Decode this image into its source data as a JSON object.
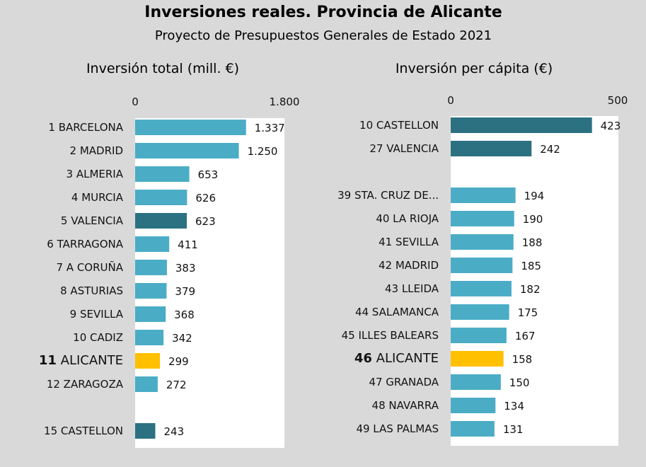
{
  "title": "Inversiones reales. Provincia de Alicante",
  "subtitle": "Proyecto de Presupuestos Generales de Estado 2021",
  "colors": {
    "background": "#d9d9d9",
    "plot_area": "#ffffff",
    "bar_default": "#4bacc6",
    "bar_valencia_region": "#2c7181",
    "bar_highlight": "#ffc000"
  },
  "chart_data": [
    {
      "type": "bar",
      "orientation": "horizontal",
      "title": "Inversión total (mill. €)",
      "xlim": [
        0,
        1800
      ],
      "tick_labels": [
        "0",
        "1.800"
      ],
      "categories": [
        "1 BARCELONA",
        "2 MADRID",
        "3 ALMERIA",
        "4 MURCIA",
        "5 VALENCIA",
        "6 TARRAGONA",
        "7 A CORUÑA",
        "8 ASTURIAS",
        "9 SEVILLA",
        "10 CADIZ",
        "11 ALICANTE",
        "12 ZARAGOZA",
        "",
        "15 CASTELLON"
      ],
      "values": [
        1337,
        1250,
        653,
        626,
        623,
        411,
        383,
        379,
        368,
        342,
        299,
        272,
        null,
        243
      ],
      "value_labels": [
        "1.337",
        "1.250",
        "653",
        "626",
        "623",
        "411",
        "383",
        "379",
        "368",
        "342",
        "299",
        "272",
        "",
        "243"
      ],
      "bar_colors": [
        "default",
        "default",
        "default",
        "default",
        "valencia_region",
        "default",
        "default",
        "default",
        "default",
        "default",
        "highlight",
        "default",
        "default",
        "valencia_region"
      ],
      "highlight_index": 10,
      "grid": false
    },
    {
      "type": "bar",
      "orientation": "horizontal",
      "title": "Inversión per cápita (€)",
      "xlim": [
        0,
        500
      ],
      "tick_labels": [
        "0",
        "500"
      ],
      "categories": [
        "10 CASTELLON",
        "27 VALENCIA",
        "",
        "39 STA. CRUZ DE...",
        "40 LA RIOJA",
        "41 SEVILLA",
        "42 MADRID",
        "43 LLEIDA",
        "44 SALAMANCA",
        "45 ILLES BALEARS",
        "46 ALICANTE",
        "47 GRANADA",
        "48 NAVARRA",
        "49 LAS PALMAS"
      ],
      "values": [
        423,
        242,
        null,
        194,
        190,
        188,
        185,
        182,
        175,
        167,
        158,
        150,
        134,
        131
      ],
      "value_labels": [
        "423",
        "242",
        "",
        "194",
        "190",
        "188",
        "185",
        "182",
        "175",
        "167",
        "158",
        "150",
        "134",
        "131"
      ],
      "bar_colors": [
        "valencia_region",
        "valencia_region",
        "default",
        "default",
        "default",
        "default",
        "default",
        "default",
        "default",
        "default",
        "highlight",
        "default",
        "default",
        "default"
      ],
      "highlight_index": 10,
      "grid": false
    }
  ]
}
